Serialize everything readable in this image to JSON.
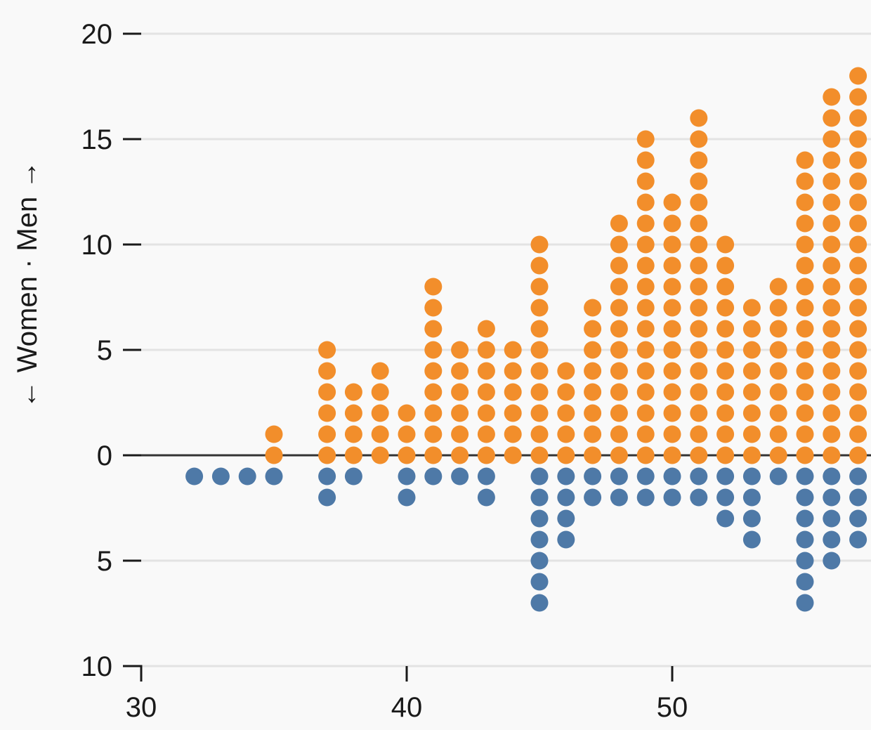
{
  "chart_data": {
    "type": "scatter",
    "title": "",
    "xlabel": "",
    "ylabel": "← Women · Men →",
    "xlim": [
      30,
      57.5
    ],
    "ylim": [
      -10,
      20
    ],
    "x_ticks": [
      30,
      40,
      50
    ],
    "y_ticks": [
      {
        "value": 20,
        "label": "20"
      },
      {
        "value": 15,
        "label": "15"
      },
      {
        "value": 10,
        "label": "10"
      },
      {
        "value": 5,
        "label": "5"
      },
      {
        "value": 0,
        "label": "0"
      },
      {
        "value": -5,
        "label": "5"
      },
      {
        "value": -10,
        "label": "10"
      }
    ],
    "grid": true,
    "colors": {
      "men": "#f28e2b",
      "women": "#4e79a7",
      "grid": "#e3e3e3",
      "baseline": "#333333"
    },
    "x": [
      32,
      33,
      34,
      35,
      37,
      38,
      39,
      40,
      41,
      42,
      43,
      44,
      45,
      46,
      47,
      48,
      49,
      50,
      51,
      52,
      53,
      54,
      55,
      56,
      57
    ],
    "series": [
      {
        "name": "Men",
        "values": [
          0,
          0,
          0,
          2,
          6,
          4,
          5,
          3,
          9,
          6,
          7,
          6,
          11,
          5,
          8,
          12,
          16,
          13,
          17,
          11,
          8,
          9,
          15,
          18,
          19
        ]
      },
      {
        "name": "Women",
        "values": [
          1,
          1,
          1,
          1,
          2,
          1,
          0,
          2,
          1,
          1,
          2,
          0,
          7,
          4,
          2,
          2,
          2,
          2,
          2,
          3,
          4,
          1,
          7,
          5,
          4
        ]
      }
    ]
  }
}
